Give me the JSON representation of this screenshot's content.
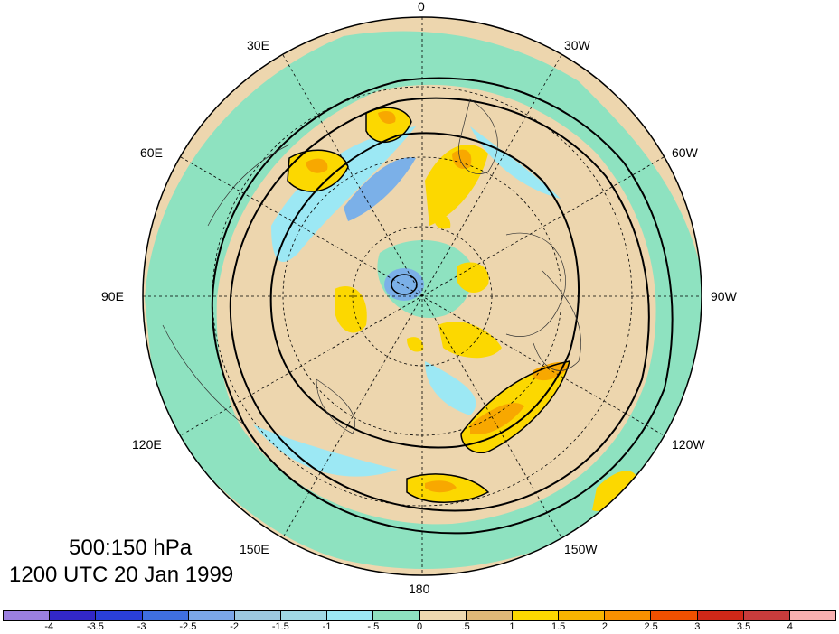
{
  "title": {
    "level": "500:150 hPa",
    "time": "1200 UTC 20 Jan 1999"
  },
  "longitude_labels": [
    "0",
    "30W",
    "60W",
    "90W",
    "120W",
    "150W",
    "180",
    "150E",
    "120E",
    "90E",
    "60E",
    "30E"
  ],
  "colorbar": {
    "labels": [
      "-4",
      "-3.5",
      "-3",
      "-2.5",
      "-2",
      "-1.5",
      "-1",
      "-.5",
      "0",
      ".5",
      "1",
      "1.5",
      "2",
      "2.5",
      "3",
      "3.5",
      "4"
    ],
    "colors": [
      "#9b7fe0",
      "#3227c8",
      "#2a3fd8",
      "#3f6fe0",
      "#7ba6e8",
      "#9cc8e0",
      "#a0d8e4",
      "#9ce8f4",
      "#8ee2c0",
      "#eed8b0",
      "#e0b878",
      "#fcd800",
      "#f8b400",
      "#f89000",
      "#f05000",
      "#d02818",
      "#c83c3c",
      "#f8b0b0"
    ]
  },
  "map": {
    "projection": "north-polar-stereographic",
    "colors": {
      "ocean_bg": "#edd6ae",
      "green": "#8ee2c0",
      "cyan": "#9ce8f4",
      "light_blue": "#7bb0e8",
      "yellow": "#fcd800",
      "orange": "#f8a800",
      "red": "#f05000",
      "tan": "#e0b070"
    }
  }
}
